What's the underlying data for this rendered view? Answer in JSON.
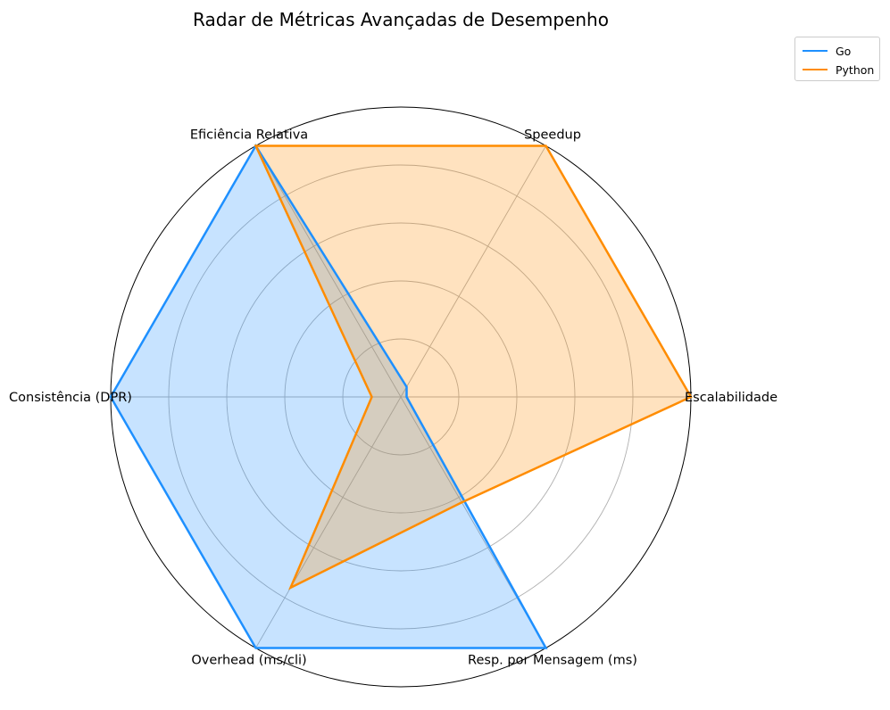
{
  "chart_data": {
    "type": "radar",
    "title": "Radar de Métricas Avançadas de Desempenho",
    "categories": [
      "Escalabilidade",
      "Speedup",
      "Eficiência Relativa",
      "Consistência (DPR)",
      "Overhead (ms/cli)",
      "Resp. por Mensagem (ms)"
    ],
    "rlim": [
      0,
      1.0
    ],
    "grid_rings": [
      0.2,
      0.4,
      0.6,
      0.8,
      1.0
    ],
    "rtick_labels": "none",
    "series": [
      {
        "name": "Go",
        "color": "#1e90ff",
        "fill": "#c6e3fd",
        "values": [
          0.02,
          0.04,
          1.0,
          1.0,
          1.0,
          1.0
        ]
      },
      {
        "name": "Python",
        "color": "#ff8c00",
        "fill": "#fee0bf",
        "values": [
          1.0,
          1.0,
          1.0,
          0.1,
          0.76,
          0.42
        ]
      }
    ],
    "legend_position": "top-right"
  }
}
